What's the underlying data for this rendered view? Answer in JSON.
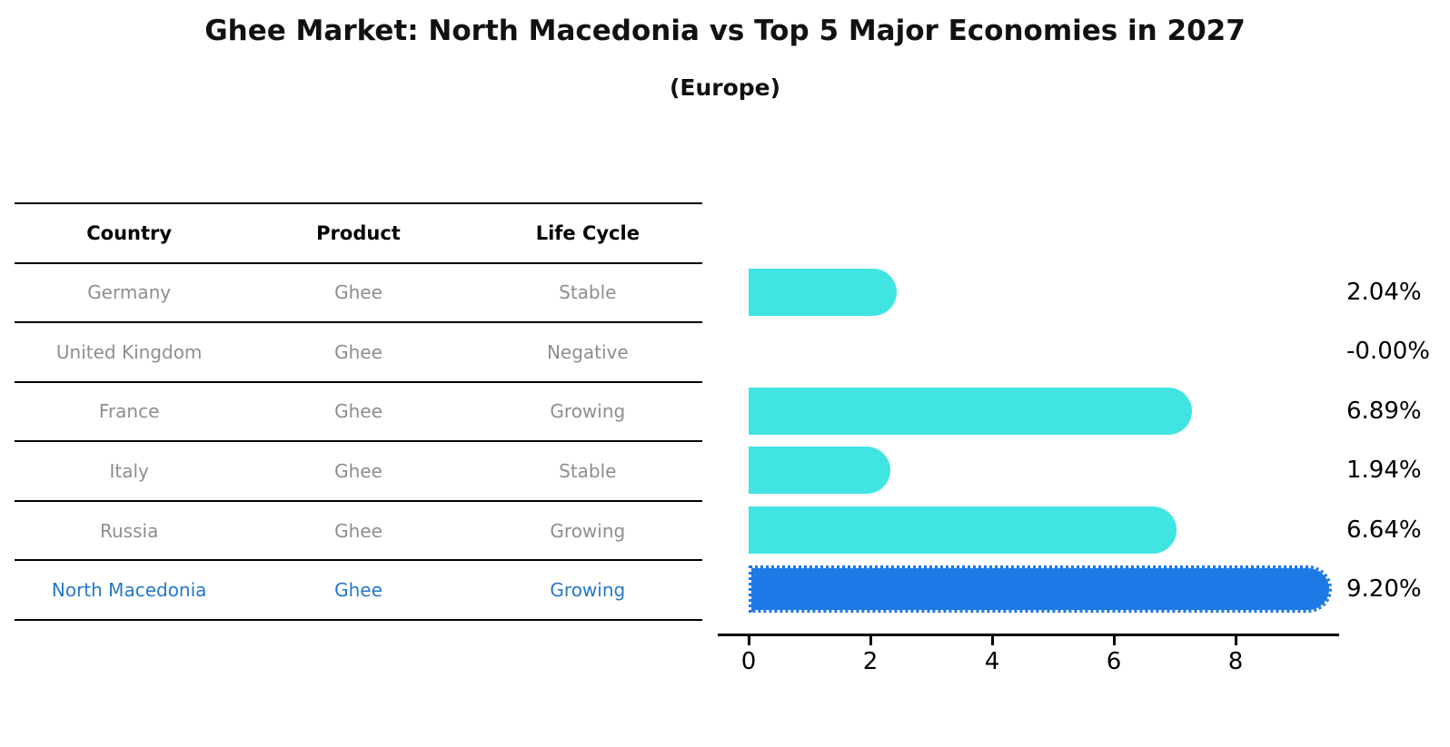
{
  "title": "Ghee Market: North Macedonia vs Top 5 Major Economies in 2027",
  "subtitle": "(Europe)",
  "table": {
    "headers": [
      "Country",
      "Product",
      "Life Cycle"
    ],
    "rows": [
      {
        "country": "Germany",
        "product": "Ghee",
        "life_cycle": "Stable",
        "highlighted": false
      },
      {
        "country": "United Kingdom",
        "product": "Ghee",
        "life_cycle": "Negative",
        "highlighted": false
      },
      {
        "country": "France",
        "product": "Ghee",
        "life_cycle": "Growing",
        "highlighted": false
      },
      {
        "country": "Italy",
        "product": "Ghee",
        "life_cycle": "Stable",
        "highlighted": false
      },
      {
        "country": "Russia",
        "product": "Ghee",
        "life_cycle": "Growing",
        "highlighted": false
      },
      {
        "country": "North Macedonia",
        "product": "Ghee",
        "life_cycle": "Growing",
        "highlighted": true
      }
    ]
  },
  "chart_data": {
    "type": "bar",
    "orientation": "horizontal",
    "title": "Ghee Market: North Macedonia vs Top 5 Major Economies in 2027",
    "subtitle": "(Europe)",
    "categories": [
      "Germany",
      "United Kingdom",
      "France",
      "Italy",
      "Russia",
      "North Macedonia"
    ],
    "values": [
      2.04,
      -0.0,
      6.89,
      1.94,
      6.64,
      9.2
    ],
    "value_labels": [
      "2.04%",
      "-0.00%",
      "6.89%",
      "1.94%",
      "6.64%",
      "9.20%"
    ],
    "highlight_index": 5,
    "xticks": [
      0,
      2,
      4,
      6,
      8
    ],
    "xlim": [
      0,
      9.7
    ],
    "grid": false,
    "legend": false,
    "colors": {
      "bar": "#40E5E2",
      "highlight_bar": "#1E78E5",
      "axis": "#000000",
      "table_text": "#8e8e8e",
      "highlight_text": "#2578cb"
    }
  }
}
